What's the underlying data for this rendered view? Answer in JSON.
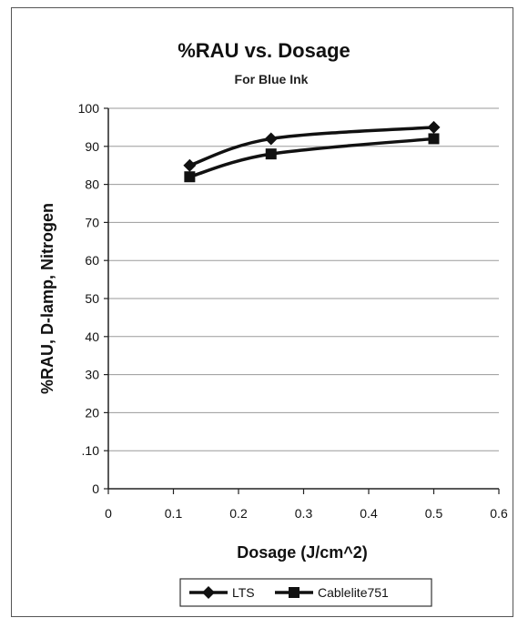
{
  "chart_data": {
    "type": "line",
    "title": "%RAU vs. Dosage",
    "subtitle": "For Blue Ink",
    "xlabel": "Dosage (J/cm^2)",
    "ylabel": "%RAU, D-lamp, Nitrogen",
    "xlim": [
      0,
      0.6
    ],
    "ylim": [
      0,
      100
    ],
    "xticks": [
      "0",
      "0.1",
      "0.2",
      "0.3",
      "0.4",
      "0.5",
      "0.6"
    ],
    "yticks": [
      "0",
      ".10",
      "20",
      "30",
      "40",
      "50",
      "60",
      "70",
      "80",
      "90",
      "100"
    ],
    "grid": "horizontal",
    "legend_position": "bottom",
    "series": [
      {
        "name": "LTS",
        "marker": "diamond",
        "color": "#111111",
        "x": [
          0.125,
          0.25,
          0.5
        ],
        "y": [
          85,
          92,
          95
        ]
      },
      {
        "name": "Cablelite751",
        "marker": "square",
        "color": "#111111",
        "x": [
          0.125,
          0.25,
          0.5
        ],
        "y": [
          82,
          88,
          92
        ]
      }
    ]
  }
}
